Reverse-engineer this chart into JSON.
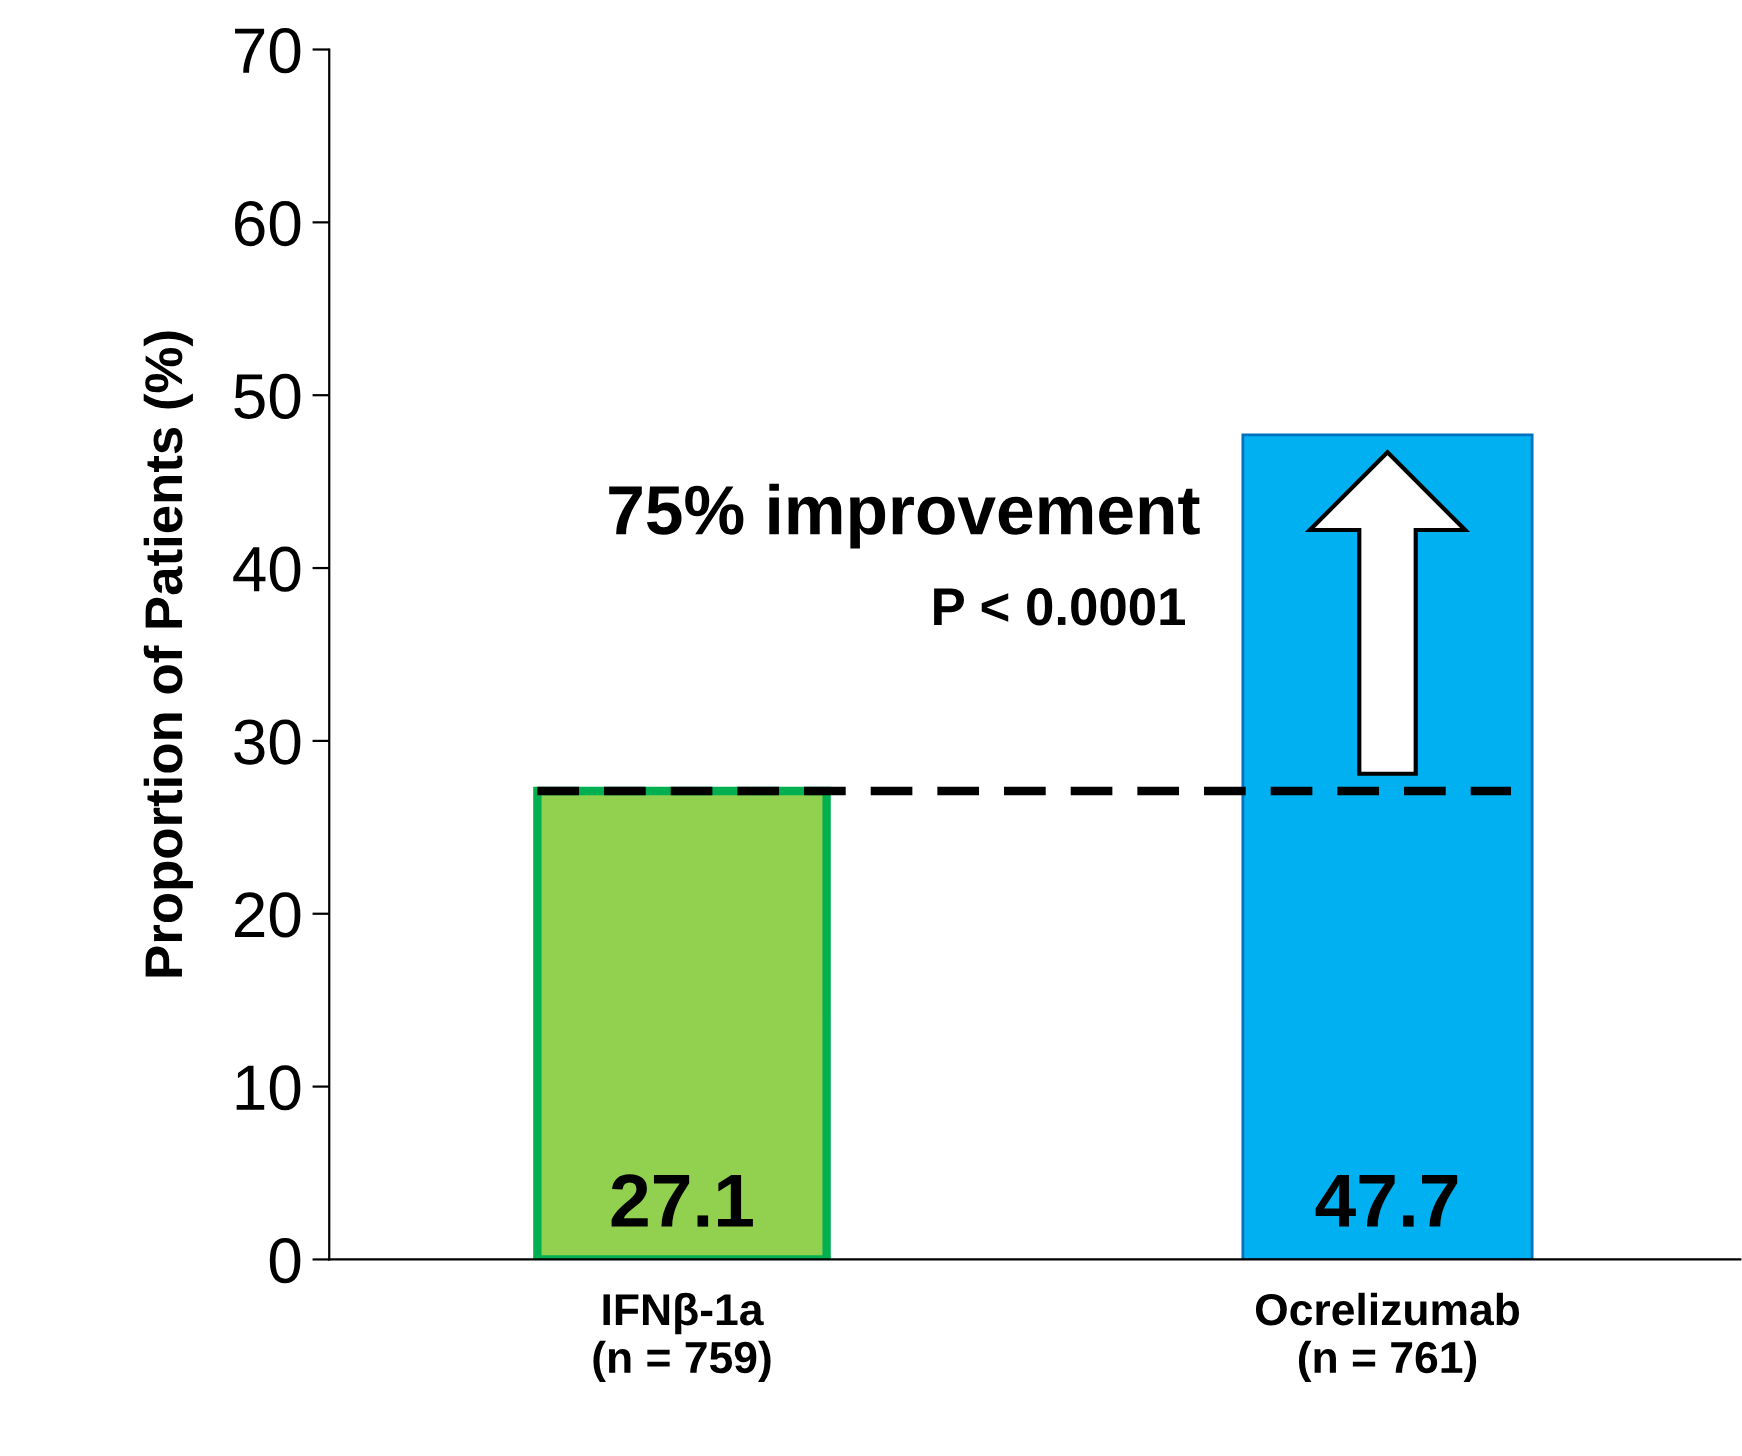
{
  "chart_data": {
    "type": "bar",
    "ylabel": "Proportion of Patients (%)",
    "categories": [
      "IFNβ-1a\n(n = 759)",
      "Ocrelizumab\n(n = 761)"
    ],
    "values": [
      27.1,
      47.7
    ],
    "colors": [
      "#92d050",
      "#00b0f0"
    ],
    "ylim": [
      0,
      70
    ],
    "yticks": [
      0,
      10,
      20,
      30,
      40,
      50,
      60,
      70
    ],
    "grid": false,
    "data_labels": true,
    "ref_lines": [
      {
        "axis": "y",
        "value": 27.1,
        "color": "#000000",
        "line_style": "dashed"
      }
    ],
    "annotations": [
      "75% improvement",
      "P < 0.0001"
    ]
  }
}
